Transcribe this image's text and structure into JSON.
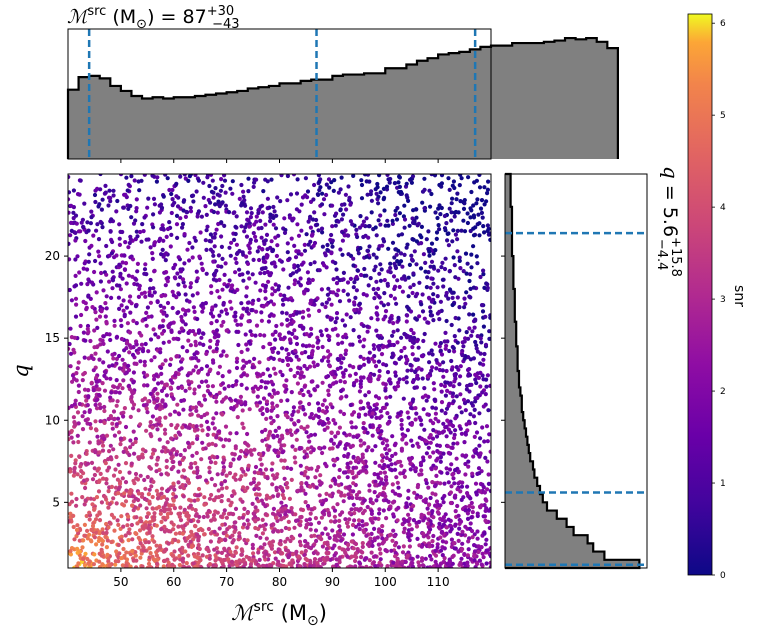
{
  "chart_data": [
    {
      "type": "histogram",
      "panel": "top",
      "variable": "chirp mass (source frame)",
      "title": {
        "symbol": "ℳ",
        "superscript": "src",
        "unit": "(M",
        "unit_sub": "⊙",
        "unit_close": ")",
        "equals": "=",
        "median": "87",
        "upper": "+30",
        "lower": "−43"
      },
      "xlim": [
        40,
        120
      ],
      "bin_edges_start": 40,
      "bin_width": 2,
      "counts": [
        0.55,
        0.65,
        0.66,
        0.64,
        0.58,
        0.54,
        0.5,
        0.48,
        0.49,
        0.48,
        0.49,
        0.49,
        0.5,
        0.51,
        0.52,
        0.53,
        0.54,
        0.56,
        0.57,
        0.58,
        0.6,
        0.6,
        0.62,
        0.63,
        0.63,
        0.66,
        0.67,
        0.67,
        0.68,
        0.68,
        0.72,
        0.72,
        0.75,
        0.78,
        0.8,
        0.83,
        0.84,
        0.85,
        0.87,
        0.89,
        0.9,
        0.9,
        0.92,
        0.92,
        0.92,
        0.93,
        0.94,
        0.96,
        0.95,
        0.96,
        0.93,
        0.88
      ],
      "ylim": [
        0,
        1
      ],
      "quantile_lines": [
        44,
        87,
        117
      ],
      "fill_color": "#808080",
      "line_color": "#1f77b4"
    },
    {
      "type": "scatter",
      "panel": "main",
      "xlabel": {
        "symbol": "ℳ",
        "superscript": "src",
        "unit": "(M",
        "unit_sub": "⊙",
        "unit_close": ")"
      },
      "ylabel": "q",
      "xlim": [
        40,
        120
      ],
      "ylim": [
        1,
        25
      ],
      "xticks": [
        "50",
        "60",
        "70",
        "80",
        "90",
        "100",
        "110"
      ],
      "yticks": [
        "5",
        "10",
        "15",
        "20"
      ],
      "color_variable": "snr",
      "colormap": "plasma",
      "description_points": [
        {
          "x": 42,
          "y": 1.5,
          "snr": 6.0
        },
        {
          "x": 50,
          "y": 2.0,
          "snr": 5.5
        },
        {
          "x": 60,
          "y": 3.0,
          "snr": 5.0
        },
        {
          "x": 70,
          "y": 5.0,
          "snr": 4.5
        },
        {
          "x": 80,
          "y": 8.0,
          "snr": 3.5
        },
        {
          "x": 90,
          "y": 12.0,
          "snr": 3.0
        },
        {
          "x": 100,
          "y": 16.0,
          "snr": 2.5
        },
        {
          "x": 110,
          "y": 20.0,
          "snr": 1.8
        },
        {
          "x": 118,
          "y": 24.0,
          "snr": 1.0
        }
      ]
    },
    {
      "type": "histogram",
      "panel": "right",
      "orientation": "horizontal",
      "variable": "mass ratio",
      "title": {
        "symbol": "q",
        "equals": "=",
        "median": "5.6",
        "upper": "+15.8",
        "lower": "−4.4"
      },
      "ylim": [
        1,
        25
      ],
      "bin_edges_start": 1,
      "bin_width": 0.5,
      "counts": [
        0.96,
        0.71,
        0.63,
        0.59,
        0.49,
        0.44,
        0.37,
        0.3,
        0.27,
        0.25,
        0.23,
        0.21,
        0.2,
        0.18,
        0.17,
        0.16,
        0.15,
        0.14,
        0.13,
        0.12,
        0.12,
        0.11,
        0.1,
        0.1,
        0.09,
        0.09,
        0.09,
        0.08,
        0.08,
        0.08,
        0.07,
        0.07,
        0.07,
        0.07,
        0.06,
        0.06,
        0.06,
        0.06,
        0.05,
        0.05,
        0.05,
        0.05,
        0.05,
        0.05,
        0.04,
        0.04,
        0.04,
        0.04
      ],
      "xlim": [
        0,
        1
      ],
      "quantile_lines": [
        1.2,
        5.6,
        21.4
      ],
      "fill_color": "#808080",
      "line_color": "#1f77b4"
    },
    {
      "type": "colorbar",
      "label": "snr",
      "colormap": "plasma",
      "range": [
        0,
        6.1
      ],
      "ticks": [
        "0",
        "1",
        "2",
        "3",
        "4",
        "5",
        "6"
      ]
    }
  ]
}
